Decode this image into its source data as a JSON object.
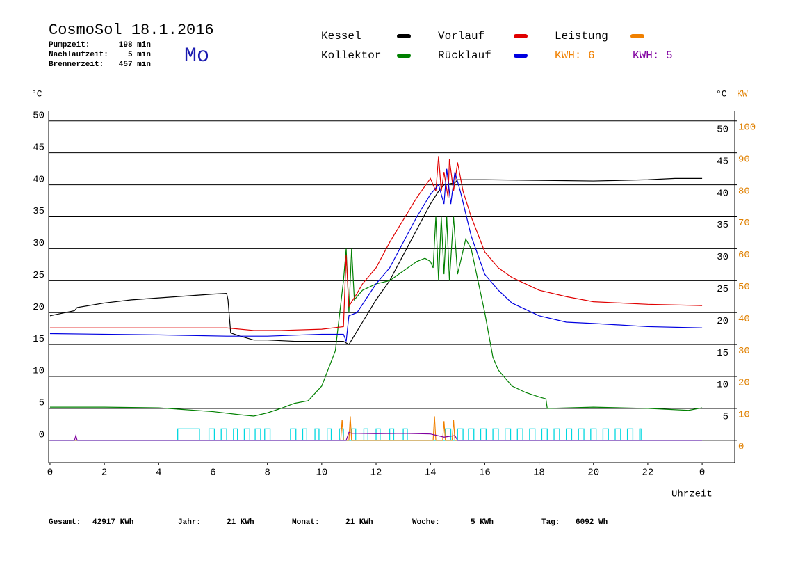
{
  "chart_data": {
    "type": "line",
    "title": "CosmoSol 18.1.2016",
    "day": "Mo",
    "info": [
      {
        "label": "Pumpzeit:",
        "value": "198 min"
      },
      {
        "label": "Nachlaufzeit:",
        "value": "5 min"
      },
      {
        "label": "Brennerzeit:",
        "value": "457 min"
      }
    ],
    "xlabel": "Uhrzeit",
    "ylabel": "°C",
    "y2labels": [
      "°C",
      "KW"
    ],
    "y2color": "#e08000",
    "xlim": [
      -0.05,
      25.2
    ],
    "xticks": [
      0,
      2,
      4,
      6,
      8,
      10,
      12,
      14,
      16,
      18,
      20,
      22,
      {
        "value": 24,
        "label": "0"
      }
    ],
    "ylim": [
      -3.5,
      51.5
    ],
    "yticks": [
      0,
      5,
      10,
      15,
      20,
      25,
      30,
      35,
      40,
      45,
      50
    ],
    "y2lim": [
      -7,
      103
    ],
    "y2ticks": [
      0,
      10,
      20,
      30,
      40,
      50,
      60,
      70,
      80,
      90,
      100
    ],
    "grid": true,
    "series": [
      {
        "name": "Kessel",
        "color": "#000000",
        "x": [
          0,
          0.9,
          1,
          2,
          3,
          4,
          5,
          6,
          6.5,
          6.55,
          6.65,
          7,
          7.5,
          8,
          9,
          10,
          10.8,
          11,
          11.5,
          12,
          12.5,
          13,
          13.5,
          14,
          14.3,
          14.5,
          14.9,
          15,
          16,
          18,
          20,
          22,
          23,
          24
        ],
        "values": [
          19.5,
          20.3,
          20.8,
          21.5,
          22,
          22.3,
          22.6,
          22.9,
          23,
          22,
          16.8,
          16.3,
          15.7,
          15.7,
          15.5,
          15.5,
          15.5,
          15,
          18.5,
          22,
          25,
          29,
          33,
          37,
          39,
          40,
          40.3,
          40.8,
          40.8,
          40.7,
          40.6,
          40.8,
          41,
          41
        ]
      },
      {
        "name": "Kollektor",
        "color": "#008000",
        "x": [
          0,
          2,
          4,
          6,
          7,
          7.5,
          8,
          8.5,
          9,
          9.5,
          10,
          10.5,
          10.8,
          10.9,
          11,
          11.1,
          11.2,
          11.5,
          12,
          12.5,
          13,
          13.5,
          13.8,
          14,
          14.1,
          14.2,
          14.3,
          14.4,
          14.5,
          14.6,
          14.7,
          14.85,
          15,
          15.3,
          15.5,
          16,
          16.3,
          16.5,
          17,
          17.5,
          18,
          18.25,
          18.3,
          20,
          22,
          23.5,
          24
        ],
        "values": [
          5.2,
          5.2,
          5.1,
          4.5,
          4,
          3.8,
          4.3,
          5,
          5.8,
          6.2,
          8.5,
          14,
          25,
          30,
          20,
          30,
          22,
          23.5,
          24.5,
          25,
          26.5,
          28,
          28.5,
          28,
          27,
          35,
          25,
          35,
          26,
          35,
          25,
          35,
          26,
          31.5,
          30,
          20,
          13,
          11,
          8.5,
          7.5,
          6.8,
          6.5,
          5,
          5.2,
          5,
          4.7,
          5.1
        ]
      },
      {
        "name": "Vorlauf",
        "color": "#e00000",
        "x": [
          0,
          6.5,
          7.5,
          8.5,
          10,
          10.8,
          10.9,
          11,
          11.3,
          11.5,
          12,
          12.5,
          13,
          13.5,
          14,
          14.2,
          14.3,
          14.4,
          14.5,
          14.65,
          14.7,
          14.85,
          15,
          15.2,
          15.5,
          16,
          16.5,
          17,
          18,
          19,
          20,
          22,
          24
        ],
        "values": [
          17.6,
          17.6,
          17.2,
          17.2,
          17.4,
          17.8,
          29,
          21,
          23,
          24.5,
          27,
          31,
          34.5,
          38,
          41,
          39,
          44.5,
          39,
          42,
          38,
          44,
          39,
          43.5,
          39,
          35,
          29.5,
          27,
          25.5,
          23.5,
          22.5,
          21.7,
          21.3,
          21.1
        ]
      },
      {
        "name": "Rücklauf",
        "color": "#0000e0",
        "x": [
          0,
          4,
          6.5,
          8,
          10,
          10.8,
          10.9,
          11,
          11.3,
          12,
          12.5,
          13,
          13.5,
          14,
          14.3,
          14.5,
          14.6,
          14.75,
          14.9,
          15.1,
          15.5,
          16,
          16.5,
          17,
          18,
          19,
          20,
          22,
          24
        ],
        "values": [
          16.7,
          16.5,
          16.3,
          16.3,
          16.6,
          16.6,
          15.5,
          19.5,
          20,
          24.5,
          27,
          31,
          35,
          38.5,
          40,
          37,
          42.5,
          37,
          42,
          39,
          32,
          26,
          23.5,
          21.5,
          19.5,
          18.5,
          18.3,
          17.8,
          17.6
        ]
      },
      {
        "name": "Leistung",
        "total_label": "KWH: 6",
        "color": "#f08000",
        "axis": "y2",
        "x": [
          0,
          10.7,
          10.75,
          10.8,
          11,
          11.05,
          11.1,
          14.1,
          14.15,
          14.2,
          14.45,
          14.5,
          14.55,
          14.8,
          14.85,
          14.9,
          24
        ],
        "values": [
          0,
          0,
          6.5,
          0,
          0,
          7.5,
          0,
          0,
          7.5,
          0,
          0,
          6,
          0,
          0,
          6.5,
          0,
          0
        ]
      },
      {
        "name": "KWH: 5",
        "color": "#8000a0",
        "axis": "y2",
        "x": [
          0,
          0.9,
          0.95,
          1,
          10.9,
          11,
          11.1,
          11.3,
          12,
          13,
          14,
          14.2,
          14.5,
          14.9,
          15,
          24
        ],
        "values": [
          0,
          0,
          1.5,
          0,
          0,
          2.5,
          2.2,
          2.2,
          2.1,
          2.2,
          2,
          1.6,
          1,
          1.5,
          0,
          0
        ]
      }
    ],
    "pulses": {
      "color": "#00d8e0",
      "level": 1.8,
      "spans": [
        [
          4.7,
          5.5
        ],
        [
          5.85,
          6.05
        ],
        [
          6.3,
          6.5
        ],
        [
          6.75,
          6.9
        ],
        [
          7.15,
          7.35
        ],
        [
          7.55,
          7.75
        ],
        [
          7.9,
          8.1
        ],
        [
          8.85,
          9.05
        ],
        [
          9.3,
          9.45
        ],
        [
          9.75,
          9.9
        ],
        [
          10.2,
          10.35
        ],
        [
          10.65,
          10.8
        ],
        [
          11.1,
          11.25
        ],
        [
          11.55,
          11.7
        ],
        [
          12,
          12.15
        ],
        [
          12.5,
          12.65
        ],
        [
          13,
          13.15
        ],
        [
          14.55,
          14.75
        ],
        [
          15,
          15.2
        ],
        [
          15.4,
          15.6
        ],
        [
          15.85,
          16.05
        ],
        [
          16.3,
          16.5
        ],
        [
          16.75,
          16.95
        ],
        [
          17.2,
          17.4
        ],
        [
          17.65,
          17.85
        ],
        [
          18.1,
          18.3
        ],
        [
          18.55,
          18.75
        ],
        [
          19,
          19.2
        ],
        [
          19.45,
          19.65
        ],
        [
          19.9,
          20.1
        ],
        [
          20.35,
          20.55
        ],
        [
          20.8,
          21
        ],
        [
          21.25,
          21.45
        ],
        [
          21.7,
          21.75
        ]
      ]
    },
    "totals": [
      {
        "label": "Gesamt:",
        "value": "42917 KWh"
      },
      {
        "label": "Jahr:",
        "value": "21 KWh"
      },
      {
        "label": "Monat:",
        "value": "21 KWh"
      },
      {
        "label": "Woche:",
        "value": "5 KWh"
      },
      {
        "label": "Tag:",
        "value": "6092 Wh"
      }
    ]
  }
}
